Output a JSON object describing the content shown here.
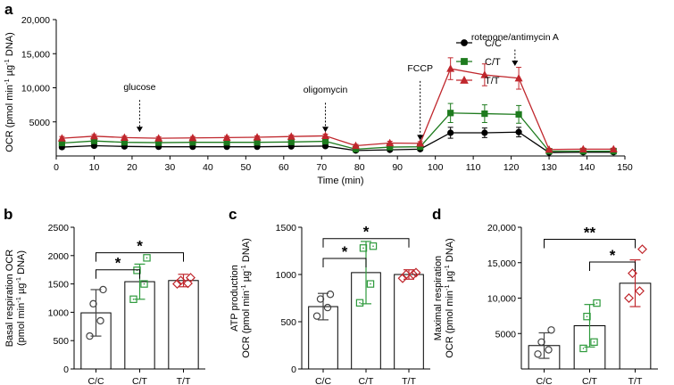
{
  "chart_data": [
    {
      "panel": "a",
      "type": "line",
      "xlabel": "Time (min)",
      "ylabel": "OCR (pmol min-1 µg-1 DNA)",
      "ylabel_parts": [
        "OCR (pmol min",
        "-1",
        " µg",
        "-1",
        " DNA)"
      ],
      "xlim": [
        0,
        150
      ],
      "ylim": [
        0,
        20000
      ],
      "xticks": [
        "0",
        "10",
        "20",
        "30",
        "40",
        "50",
        "60",
        "70",
        "80",
        "90",
        "100",
        "110",
        "120",
        "130",
        "140",
        "150"
      ],
      "yticks": [
        "5000",
        "10,000",
        "15,000",
        "20,000"
      ],
      "x": [
        1.5,
        10,
        18,
        27,
        36,
        45,
        53,
        62,
        71,
        79,
        88,
        96,
        104,
        113,
        122,
        130,
        139,
        147
      ],
      "series": [
        {
          "name": "C/C",
          "color": "#000000",
          "marker": "circle",
          "values": [
            1300,
            1500,
            1400,
            1350,
            1350,
            1350,
            1350,
            1400,
            1450,
            800,
            900,
            1000,
            3400,
            3400,
            3500,
            500,
            550,
            550
          ],
          "err": [
            250,
            250,
            250,
            200,
            200,
            200,
            200,
            200,
            200,
            150,
            150,
            150,
            800,
            700,
            700,
            100,
            100,
            100
          ]
        },
        {
          "name": "C/T",
          "color": "#1e7b1e",
          "marker": "square",
          "values": [
            1900,
            2200,
            2000,
            1950,
            2000,
            2000,
            2000,
            2050,
            2150,
            1000,
            1300,
            1350,
            6300,
            6200,
            6100,
            700,
            700,
            700
          ],
          "err": [
            250,
            300,
            250,
            250,
            250,
            250,
            250,
            250,
            250,
            150,
            200,
            200,
            1400,
            1300,
            1300,
            100,
            100,
            100
          ]
        },
        {
          "name": "T/T",
          "color": "#c0272d",
          "marker": "triangle",
          "values": [
            2600,
            2900,
            2700,
            2600,
            2650,
            2700,
            2750,
            2850,
            2950,
            1500,
            1900,
            1850,
            12800,
            11900,
            11400,
            950,
            1000,
            1000
          ],
          "err": [
            250,
            250,
            200,
            200,
            200,
            200,
            200,
            200,
            250,
            200,
            250,
            250,
            1600,
            1600,
            1600,
            150,
            150,
            150
          ]
        }
      ],
      "annotations": [
        {
          "text": "glucose",
          "x": 22,
          "y_text": 9700,
          "y_arrow_top": 8200,
          "y_arrow_bottom": 3500
        },
        {
          "text": "oligomycin",
          "x": 71,
          "y_text": 9300,
          "y_arrow_top": 7800,
          "y_arrow_bottom": 3500
        },
        {
          "text": "FCCP",
          "x": 96,
          "y_text": 12400,
          "y_arrow_top": 11000,
          "y_arrow_bottom": 2300
        },
        {
          "text": "rotenone/antimycin A",
          "x": 121,
          "y_text": 17000,
          "y_arrow_top": 15600,
          "y_arrow_bottom": 13200
        }
      ],
      "legend_position": "top-right"
    },
    {
      "panel": "b",
      "type": "bar",
      "categories": [
        "C/C",
        "C/T",
        "T/T"
      ],
      "values": [
        990,
        1540,
        1560
      ],
      "err": [
        410,
        310,
        110
      ],
      "colors": [
        "#444444",
        "#2e9a3c",
        "#c0272d"
      ],
      "markers": [
        "circle",
        "square",
        "diamond"
      ],
      "points": [
        [
          580,
          850,
          1150,
          1400
        ],
        [
          1230,
          1500,
          1740,
          1960
        ],
        [
          1500,
          1510,
          1560,
          1610
        ]
      ],
      "ylabel_lines": [
        "Basal respiration OCR",
        "(pmol min-1 µg-1 DNA)"
      ],
      "ylabel_line2_parts": [
        "(pmol min",
        "-1",
        " µg",
        "-1",
        " DNA)"
      ],
      "ylim": [
        0,
        2500
      ],
      "yticks": [
        "0",
        "500",
        "1000",
        "1500",
        "2000",
        "2500"
      ],
      "significance": [
        {
          "from": 0,
          "to": 2,
          "label": "*",
          "y": 2050
        },
        {
          "from": 0,
          "to": 1,
          "label": "*",
          "y": 1750
        }
      ]
    },
    {
      "panel": "c",
      "type": "bar",
      "categories": [
        "C/C",
        "C/T",
        "T/T"
      ],
      "values": [
        660,
        1020,
        1000
      ],
      "err": [
        140,
        330,
        50
      ],
      "colors": [
        "#444444",
        "#2e9a3c",
        "#c0272d"
      ],
      "markers": [
        "circle",
        "square",
        "diamond"
      ],
      "points": [
        [
          560,
          650,
          740,
          790
        ],
        [
          700,
          900,
          1280,
          1300
        ],
        [
          960,
          1000,
          1000,
          1020
        ]
      ],
      "ylabel_lines": [
        "ATP production",
        "OCR (pmol min-1 µg-1 DNA)"
      ],
      "ylabel_line2_parts": [
        "OCR (pmol min",
        "-1",
        " µg",
        "-1",
        " DNA)"
      ],
      "ylim": [
        0,
        1500
      ],
      "yticks": [
        "0",
        "500",
        "1000",
        "1500"
      ],
      "significance": [
        {
          "from": 0,
          "to": 2,
          "label": "*",
          "y": 1380
        },
        {
          "from": 0,
          "to": 1,
          "label": "*",
          "y": 1170
        }
      ]
    },
    {
      "panel": "d",
      "type": "bar",
      "categories": [
        "C/C",
        "C/T",
        "T/T"
      ],
      "values": [
        3300,
        6100,
        12100
      ],
      "err": [
        1800,
        3000,
        3300
      ],
      "colors": [
        "#444444",
        "#2e9a3c",
        "#c0272d"
      ],
      "markers": [
        "circle",
        "square",
        "diamond"
      ],
      "points": [
        [
          2100,
          2700,
          3800,
          5500
        ],
        [
          2900,
          3800,
          7400,
          9300
        ],
        [
          10000,
          11000,
          13500,
          16900
        ]
      ],
      "ylabel_lines": [
        "Maximal respiration",
        "OCR (pmol min-1 µg-1 DNA)"
      ],
      "ylabel_line2_parts": [
        "OCR (pmol min",
        "-1",
        " µg",
        "-1",
        " DNA)"
      ],
      "ylim": [
        0,
        20000
      ],
      "yticks": [
        "5000",
        "10,000",
        "15,000",
        "20,000"
      ],
      "significance": [
        {
          "from": 0,
          "to": 2,
          "label": "**",
          "y": 18300
        },
        {
          "from": 1,
          "to": 2,
          "label": "*",
          "y": 15100
        }
      ]
    }
  ]
}
